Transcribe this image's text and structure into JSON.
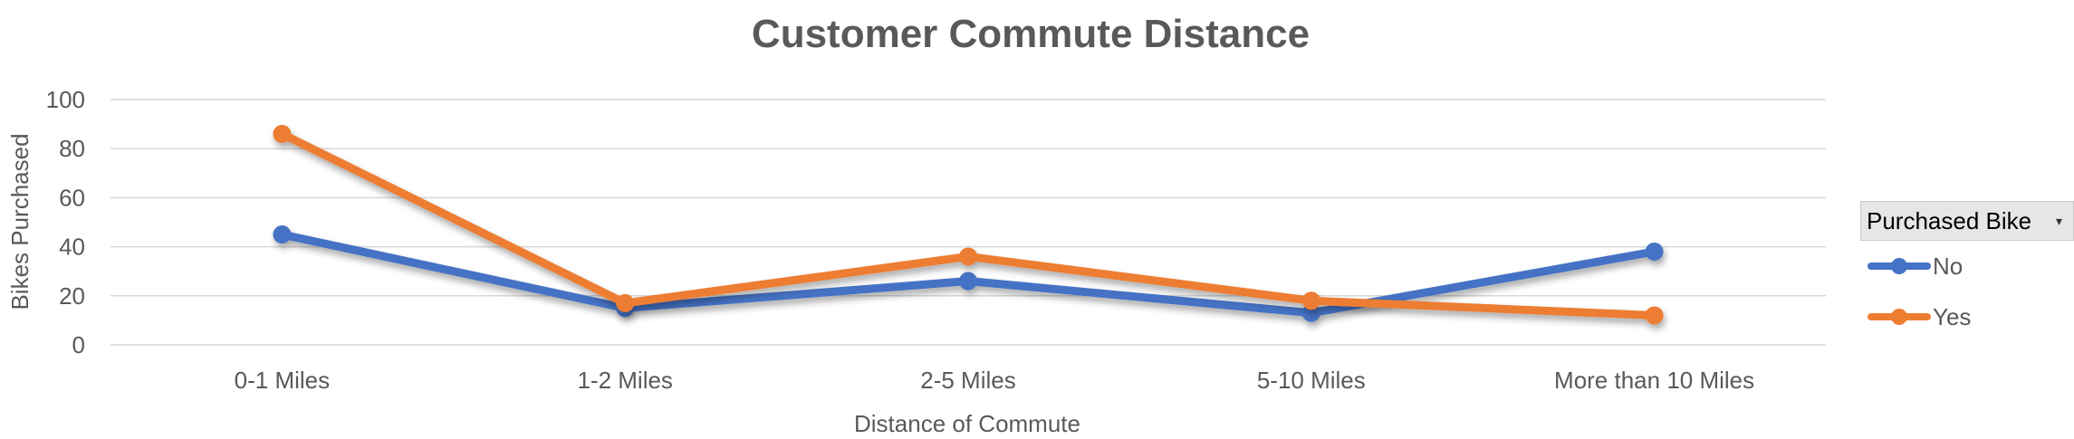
{
  "chart_data": {
    "type": "line",
    "title": "Customer Commute Distance",
    "xlabel": "Distance of Commute",
    "ylabel": "Bikes Purchased",
    "categories": [
      "0-1 Miles",
      "1-2 Miles",
      "2-5 Miles",
      "5-10 Miles",
      "More than 10 Miles"
    ],
    "ylim": [
      0,
      100
    ],
    "yticks": [
      "0",
      "20",
      "40",
      "60",
      "80",
      "100"
    ],
    "grid": true,
    "legend_title": "Purchased Bike",
    "legend_position": "right",
    "series": [
      {
        "name": "No",
        "color": "#4472C4",
        "values": [
          45,
          15,
          26,
          13,
          38
        ]
      },
      {
        "name": "Yes",
        "color": "#ED7D31",
        "values": [
          86,
          17,
          36,
          18,
          12
        ]
      }
    ]
  },
  "icons": {
    "legend_dropdown": "chevron-down-icon"
  }
}
